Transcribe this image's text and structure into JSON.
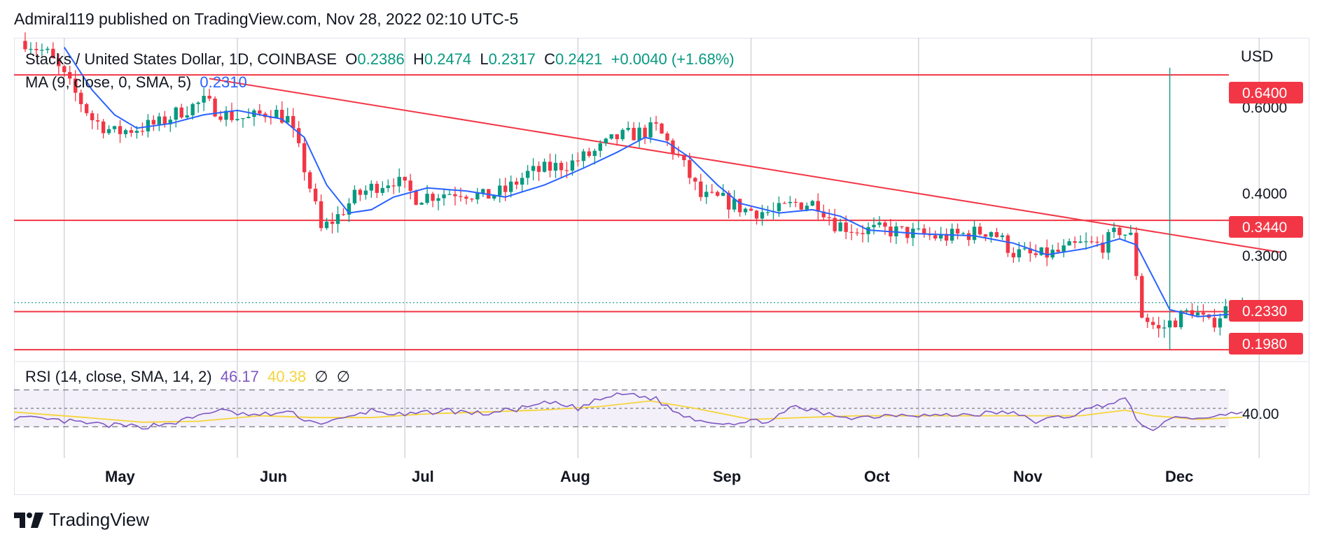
{
  "header": {
    "published": "Admiral119 published on TradingView.com, Nov 28, 2022 02:10 UTC-5"
  },
  "legend": {
    "symbol": "Stacks / United States Dollar, 1D, COINBASE",
    "o_label": "O",
    "o": "0.2386",
    "h_label": "H",
    "h": "0.2474",
    "l_label": "L",
    "l": "0.2317",
    "c_label": "C",
    "c": "0.2421",
    "change": "+0.0040 (+1.68%)",
    "ma_label": "MA (9, close, 0, SMA, 5)",
    "ma_value": "0.2310",
    "rsi_label": "RSI (14, close, SMA, 14, 2)",
    "rsi_value": "46.17",
    "rsi_ma_value": "40.38",
    "na_1": "∅",
    "na_2": "∅"
  },
  "axis": {
    "currency": "USD",
    "price_ticks": [
      "0.6000",
      "0.4000",
      "0.3000"
    ],
    "rsi_tick": "40.00",
    "months": [
      "May",
      "Jun",
      "Jul",
      "Aug",
      "Sep",
      "Oct",
      "Nov",
      "Dec"
    ]
  },
  "levels": {
    "l640": "0.6400",
    "l344": "0.3440",
    "l233": "0.2330",
    "l198": "0.1980"
  },
  "branding": {
    "logo_text": "TradingView"
  },
  "colors": {
    "up": "#089981",
    "down": "#f23645",
    "level": "#f23645",
    "ma": "#2962ff",
    "rsi": "#7e57c2",
    "rsi_ma": "#f5d43b"
  },
  "chart_data": {
    "type": "candlestick",
    "title": "Stacks / United States Dollar, 1D, COINBASE",
    "x_range": [
      "2022-04-22",
      "2022-12-10"
    ],
    "y_scale": "log",
    "ylim": [
      0.19,
      0.75
    ],
    "last_ohlc": {
      "open": 0.2386,
      "high": 0.2474,
      "low": 0.2317,
      "close": 0.2421
    },
    "horizontal_levels": [
      0.64,
      0.344,
      0.233,
      0.198
    ],
    "trendline": [
      {
        "date": "2022-05-27",
        "value": 0.63
      },
      {
        "date": "2022-12-05",
        "value": 0.3
      }
    ],
    "price_path": [
      [
        "2022-04-24",
        0.74
      ],
      [
        "2022-04-28",
        0.7
      ],
      [
        "2022-05-03",
        0.59
      ],
      [
        "2022-05-06",
        0.53
      ],
      [
        "2022-05-10",
        0.5
      ],
      [
        "2022-05-14",
        0.51
      ],
      [
        "2022-05-18",
        0.52
      ],
      [
        "2022-05-22",
        0.55
      ],
      [
        "2022-05-26",
        0.57
      ],
      [
        "2022-05-30",
        0.54
      ],
      [
        "2022-06-03",
        0.53
      ],
      [
        "2022-06-07",
        0.55
      ],
      [
        "2022-06-10",
        0.53
      ],
      [
        "2022-06-13",
        0.43
      ],
      [
        "2022-06-16",
        0.33
      ],
      [
        "2022-06-19",
        0.35
      ],
      [
        "2022-06-22",
        0.38
      ],
      [
        "2022-06-26",
        0.4
      ],
      [
        "2022-06-29",
        0.41
      ],
      [
        "2022-07-03",
        0.38
      ],
      [
        "2022-07-07",
        0.385
      ],
      [
        "2022-07-11",
        0.39
      ],
      [
        "2022-07-15",
        0.38
      ],
      [
        "2022-07-19",
        0.39
      ],
      [
        "2022-07-23",
        0.42
      ],
      [
        "2022-07-27",
        0.43
      ],
      [
        "2022-07-31",
        0.44
      ],
      [
        "2022-08-04",
        0.46
      ],
      [
        "2022-08-08",
        0.49
      ],
      [
        "2022-08-12",
        0.5
      ],
      [
        "2022-08-15",
        0.51
      ],
      [
        "2022-08-19",
        0.45
      ],
      [
        "2022-08-23",
        0.38
      ],
      [
        "2022-08-27",
        0.375
      ],
      [
        "2022-08-31",
        0.36
      ],
      [
        "2022-09-05",
        0.355
      ],
      [
        "2022-09-09",
        0.37
      ],
      [
        "2022-09-13",
        0.37
      ],
      [
        "2022-09-16",
        0.34
      ],
      [
        "2022-09-20",
        0.33
      ],
      [
        "2022-09-25",
        0.33
      ],
      [
        "2022-09-30",
        0.325
      ],
      [
        "2022-10-05",
        0.32
      ],
      [
        "2022-10-10",
        0.325
      ],
      [
        "2022-10-14",
        0.33
      ],
      [
        "2022-10-18",
        0.3
      ],
      [
        "2022-10-22",
        0.295
      ],
      [
        "2022-10-26",
        0.3
      ],
      [
        "2022-10-30",
        0.31
      ],
      [
        "2022-11-03",
        0.31
      ],
      [
        "2022-11-06",
        0.33
      ],
      [
        "2022-11-08",
        0.32
      ],
      [
        "2022-11-10",
        0.23
      ],
      [
        "2022-11-13",
        0.215
      ],
      [
        "2022-11-16",
        0.225
      ],
      [
        "2022-11-19",
        0.235
      ],
      [
        "2022-11-22",
        0.22
      ],
      [
        "2022-11-25",
        0.235
      ],
      [
        "2022-11-28",
        0.242
      ]
    ],
    "ma_path": [
      [
        "2022-05-01",
        0.72
      ],
      [
        "2022-05-06",
        0.6
      ],
      [
        "2022-05-10",
        0.54
      ],
      [
        "2022-05-14",
        0.51
      ],
      [
        "2022-05-20",
        0.52
      ],
      [
        "2022-05-26",
        0.54
      ],
      [
        "2022-06-01",
        0.55
      ],
      [
        "2022-06-09",
        0.53
      ],
      [
        "2022-06-13",
        0.49
      ],
      [
        "2022-06-17",
        0.4
      ],
      [
        "2022-06-21",
        0.355
      ],
      [
        "2022-06-25",
        0.36
      ],
      [
        "2022-06-29",
        0.38
      ],
      [
        "2022-07-05",
        0.395
      ],
      [
        "2022-07-12",
        0.39
      ],
      [
        "2022-07-19",
        0.38
      ],
      [
        "2022-07-26",
        0.4
      ],
      [
        "2022-08-02",
        0.43
      ],
      [
        "2022-08-08",
        0.46
      ],
      [
        "2022-08-13",
        0.49
      ],
      [
        "2022-08-17",
        0.48
      ],
      [
        "2022-08-21",
        0.45
      ],
      [
        "2022-08-26",
        0.4
      ],
      [
        "2022-08-30",
        0.37
      ],
      [
        "2022-09-06",
        0.355
      ],
      [
        "2022-09-12",
        0.36
      ],
      [
        "2022-09-17",
        0.35
      ],
      [
        "2022-09-22",
        0.33
      ],
      [
        "2022-10-01",
        0.325
      ],
      [
        "2022-10-11",
        0.322
      ],
      [
        "2022-10-18",
        0.312
      ],
      [
        "2022-10-24",
        0.297
      ],
      [
        "2022-10-31",
        0.305
      ],
      [
        "2022-11-06",
        0.318
      ],
      [
        "2022-11-09",
        0.31
      ],
      [
        "2022-11-12",
        0.27
      ],
      [
        "2022-11-15",
        0.235
      ],
      [
        "2022-11-20",
        0.228
      ],
      [
        "2022-11-25",
        0.23
      ],
      [
        "2022-11-28",
        0.231
      ]
    ],
    "spike": {
      "date": "2022-11-15",
      "high": 0.66,
      "low": 0.198
    },
    "rsi": {
      "range": [
        0,
        100
      ],
      "bands": [
        70,
        50,
        30
      ],
      "rsi_path": [
        [
          "2022-04-22",
          40
        ],
        [
          "2022-05-01",
          36
        ],
        [
          "2022-05-08",
          32
        ],
        [
          "2022-05-15",
          30
        ],
        [
          "2022-05-22",
          36
        ],
        [
          "2022-05-28",
          48
        ],
        [
          "2022-06-04",
          42
        ],
        [
          "2022-06-10",
          46
        ],
        [
          "2022-06-15",
          34
        ],
        [
          "2022-06-20",
          38
        ],
        [
          "2022-06-25",
          48
        ],
        [
          "2022-07-01",
          42
        ],
        [
          "2022-07-08",
          48
        ],
        [
          "2022-07-15",
          44
        ],
        [
          "2022-07-22",
          50
        ],
        [
          "2022-07-27",
          56
        ],
        [
          "2022-08-01",
          50
        ],
        [
          "2022-08-06",
          62
        ],
        [
          "2022-08-10",
          66
        ],
        [
          "2022-08-15",
          60
        ],
        [
          "2022-08-19",
          44
        ],
        [
          "2022-08-24",
          36
        ],
        [
          "2022-08-30",
          34
        ],
        [
          "2022-09-05",
          38
        ],
        [
          "2022-09-09",
          52
        ],
        [
          "2022-09-14",
          44
        ],
        [
          "2022-09-20",
          40
        ],
        [
          "2022-09-28",
          44
        ],
        [
          "2022-10-05",
          42
        ],
        [
          "2022-10-12",
          44
        ],
        [
          "2022-10-17",
          46
        ],
        [
          "2022-10-22",
          36
        ],
        [
          "2022-10-28",
          42
        ],
        [
          "2022-11-03",
          54
        ],
        [
          "2022-11-07",
          60
        ],
        [
          "2022-11-10",
          30
        ],
        [
          "2022-11-13",
          28
        ],
        [
          "2022-11-16",
          42
        ],
        [
          "2022-11-20",
          38
        ],
        [
          "2022-11-24",
          44
        ],
        [
          "2022-11-28",
          46
        ]
      ],
      "rsi_ma_path": [
        [
          "2022-04-22",
          46
        ],
        [
          "2022-05-05",
          40
        ],
        [
          "2022-05-15",
          35
        ],
        [
          "2022-05-25",
          36
        ],
        [
          "2022-06-05",
          42
        ],
        [
          "2022-06-15",
          40
        ],
        [
          "2022-06-25",
          40
        ],
        [
          "2022-07-05",
          44
        ],
        [
          "2022-07-15",
          46
        ],
        [
          "2022-07-25",
          48
        ],
        [
          "2022-08-05",
          52
        ],
        [
          "2022-08-14",
          58
        ],
        [
          "2022-08-22",
          50
        ],
        [
          "2022-09-01",
          38
        ],
        [
          "2022-09-10",
          40
        ],
        [
          "2022-09-20",
          42
        ],
        [
          "2022-10-05",
          42
        ],
        [
          "2022-10-20",
          42
        ],
        [
          "2022-10-30",
          42
        ],
        [
          "2022-11-07",
          48
        ],
        [
          "2022-11-12",
          42
        ],
        [
          "2022-11-20",
          38
        ],
        [
          "2022-11-28",
          40.38
        ]
      ]
    }
  }
}
